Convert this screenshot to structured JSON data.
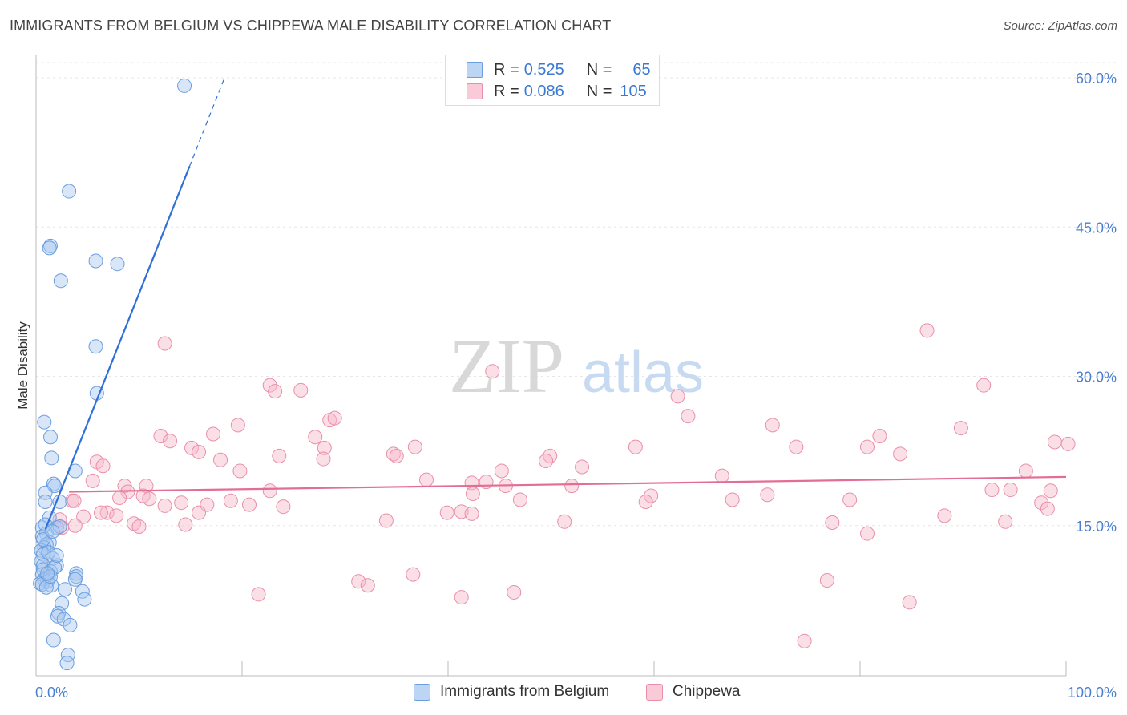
{
  "title": "IMMIGRANTS FROM BELGIUM VS CHIPPEWA MALE DISABILITY CORRELATION CHART",
  "source": "Source: ZipAtlas.com",
  "watermark": {
    "zip": "ZIP",
    "atlas": "atlas"
  },
  "colors": {
    "blue_fill": "#a9c8f0",
    "blue_stroke": "#6a9ee0",
    "blue_line": "#2f6fd6",
    "pink_fill": "#f6b7ca",
    "pink_stroke": "#e98fab",
    "pink_line": "#e36d95",
    "axis_text": "#4a7fd0",
    "grid": "#e6e6e6"
  },
  "legend_top": {
    "rows": [
      {
        "r_label": "R =",
        "r_value": "0.525",
        "n_label": "N =",
        "n_value": "65"
      },
      {
        "r_label": "R =",
        "r_value": "0.086",
        "n_label": "N =",
        "n_value": "105"
      }
    ]
  },
  "legend_bottom": {
    "series1": "Immigrants from Belgium",
    "series2": "Chippewa"
  },
  "chart_data": {
    "type": "scatter",
    "title": "IMMIGRANTS FROM BELGIUM VS CHIPPEWA MALE DISABILITY CORRELATION CHART",
    "xlabel": "",
    "ylabel": "Male Disability",
    "xlim": [
      0,
      100
    ],
    "ylim": [
      0,
      61.5
    ],
    "x_tick_labels": [
      "0.0%",
      "100.0%"
    ],
    "y_ticks": [
      15,
      30,
      45,
      60
    ],
    "y_tick_labels": [
      "15.0%",
      "30.0%",
      "45.0%",
      "60.0%"
    ],
    "grid": "horizontal dashed",
    "legend": "top-center and bottom",
    "series": [
      {
        "name": "Immigrants from Belgium",
        "color": "#a9c8f0",
        "r": 0.525,
        "n": 65,
        "trend": {
          "x0": 0.9,
          "y0": 14.6,
          "x1": 14.9,
          "y1": 51.1,
          "dashed_to": [
            18.3,
            60.0
          ]
        },
        "points": [
          [
            14.4,
            59.2
          ],
          [
            3.2,
            48.6
          ],
          [
            1.4,
            43.1
          ],
          [
            1.3,
            42.9
          ],
          [
            5.8,
            41.6
          ],
          [
            7.9,
            41.3
          ],
          [
            2.4,
            39.6
          ],
          [
            5.8,
            33.0
          ],
          [
            5.9,
            28.3
          ],
          [
            0.8,
            25.4
          ],
          [
            1.4,
            23.9
          ],
          [
            1.5,
            21.8
          ],
          [
            3.8,
            20.5
          ],
          [
            1.7,
            19.2
          ],
          [
            1.8,
            19.0
          ],
          [
            0.9,
            18.3
          ],
          [
            0.9,
            17.4
          ],
          [
            2.3,
            17.4
          ],
          [
            1.3,
            15.8
          ],
          [
            2.0,
            14.8
          ],
          [
            0.6,
            14.8
          ],
          [
            1.0,
            14.2
          ],
          [
            0.6,
            13.9
          ],
          [
            1.3,
            13.3
          ],
          [
            1.0,
            13.1
          ],
          [
            0.8,
            12.8
          ],
          [
            0.5,
            12.5
          ],
          [
            0.7,
            12.1
          ],
          [
            1.6,
            11.7
          ],
          [
            0.5,
            11.4
          ],
          [
            0.7,
            11.0
          ],
          [
            2.0,
            11.0
          ],
          [
            0.7,
            10.6
          ],
          [
            1.4,
            10.4
          ],
          [
            0.6,
            10.1
          ],
          [
            1.2,
            9.8
          ],
          [
            0.8,
            9.6
          ],
          [
            1.1,
            9.4
          ],
          [
            0.4,
            9.2
          ],
          [
            0.6,
            9.1
          ],
          [
            3.9,
            10.2
          ],
          [
            3.9,
            9.9
          ],
          [
            3.8,
            9.6
          ],
          [
            1.5,
            9.0
          ],
          [
            1.0,
            8.8
          ],
          [
            2.8,
            8.6
          ],
          [
            4.5,
            8.4
          ],
          [
            4.7,
            7.6
          ],
          [
            2.5,
            7.2
          ],
          [
            2.2,
            6.2
          ],
          [
            2.1,
            5.9
          ],
          [
            2.7,
            5.6
          ],
          [
            3.3,
            5.0
          ],
          [
            1.7,
            3.5
          ],
          [
            3.1,
            2.0
          ],
          [
            3.0,
            1.2
          ],
          [
            1.8,
            10.8
          ],
          [
            1.2,
            12.3
          ],
          [
            0.7,
            13.6
          ],
          [
            2.3,
            14.9
          ],
          [
            0.9,
            15.1
          ],
          [
            1.4,
            9.9
          ],
          [
            2.0,
            12.0
          ],
          [
            1.1,
            10.2
          ],
          [
            1.6,
            14.4
          ]
        ]
      },
      {
        "name": "Chippewa",
        "color": "#f6b7ca",
        "r": 0.086,
        "n": 105,
        "trend": {
          "x0": 3.2,
          "y0": 18.4,
          "x1": 100.0,
          "y1": 19.9
        },
        "points": [
          [
            86.5,
            34.6
          ],
          [
            12.5,
            33.3
          ],
          [
            44.3,
            30.5
          ],
          [
            22.7,
            29.1
          ],
          [
            23.2,
            28.5
          ],
          [
            25.7,
            28.6
          ],
          [
            62.3,
            28.0
          ],
          [
            92.0,
            29.1
          ],
          [
            63.3,
            26.0
          ],
          [
            28.5,
            25.6
          ],
          [
            19.6,
            25.1
          ],
          [
            71.5,
            25.1
          ],
          [
            89.8,
            24.8
          ],
          [
            12.1,
            24.0
          ],
          [
            17.2,
            24.2
          ],
          [
            27.1,
            23.9
          ],
          [
            81.9,
            24.0
          ],
          [
            13.0,
            23.5
          ],
          [
            28.0,
            22.8
          ],
          [
            15.1,
            22.8
          ],
          [
            15.8,
            22.4
          ],
          [
            36.8,
            22.9
          ],
          [
            58.2,
            22.9
          ],
          [
            73.8,
            22.9
          ],
          [
            80.7,
            22.9
          ],
          [
            98.9,
            23.4
          ],
          [
            100.2,
            23.2
          ],
          [
            34.7,
            22.2
          ],
          [
            35.0,
            22.0
          ],
          [
            23.6,
            22.0
          ],
          [
            83.9,
            22.2
          ],
          [
            49.9,
            22.0
          ],
          [
            17.9,
            21.6
          ],
          [
            27.9,
            21.7
          ],
          [
            49.5,
            21.5
          ],
          [
            5.9,
            21.4
          ],
          [
            53.0,
            20.9
          ],
          [
            6.5,
            21.0
          ],
          [
            19.8,
            20.5
          ],
          [
            45.2,
            20.5
          ],
          [
            96.1,
            20.5
          ],
          [
            66.6,
            20.0
          ],
          [
            37.9,
            19.6
          ],
          [
            43.7,
            19.4
          ],
          [
            42.3,
            19.3
          ],
          [
            52.0,
            19.0
          ],
          [
            45.6,
            19.0
          ],
          [
            8.6,
            19.0
          ],
          [
            10.7,
            19.0
          ],
          [
            5.5,
            19.5
          ],
          [
            22.7,
            18.5
          ],
          [
            8.9,
            18.4
          ],
          [
            92.8,
            18.6
          ],
          [
            94.6,
            18.6
          ],
          [
            98.5,
            18.5
          ],
          [
            71.0,
            18.1
          ],
          [
            59.7,
            18.0
          ],
          [
            10.4,
            18.0
          ],
          [
            42.4,
            18.2
          ],
          [
            8.1,
            17.8
          ],
          [
            67.6,
            17.6
          ],
          [
            3.5,
            17.5
          ],
          [
            3.7,
            17.5
          ],
          [
            11.0,
            17.7
          ],
          [
            18.9,
            17.5
          ],
          [
            47.0,
            17.6
          ],
          [
            59.2,
            17.4
          ],
          [
            79.0,
            17.6
          ],
          [
            97.6,
            17.3
          ],
          [
            12.5,
            17.0
          ],
          [
            14.1,
            17.3
          ],
          [
            16.6,
            17.1
          ],
          [
            20.7,
            17.1
          ],
          [
            24.0,
            16.9
          ],
          [
            98.2,
            16.7
          ],
          [
            6.9,
            16.3
          ],
          [
            15.8,
            16.3
          ],
          [
            7.8,
            16.0
          ],
          [
            39.9,
            16.3
          ],
          [
            41.3,
            16.4
          ],
          [
            42.3,
            16.2
          ],
          [
            88.2,
            16.0
          ],
          [
            4.6,
            15.9
          ],
          [
            2.3,
            15.6
          ],
          [
            3.8,
            15.0
          ],
          [
            9.5,
            15.2
          ],
          [
            10.0,
            14.9
          ],
          [
            14.5,
            15.1
          ],
          [
            34.0,
            15.5
          ],
          [
            51.3,
            15.4
          ],
          [
            77.3,
            15.3
          ],
          [
            94.1,
            15.4
          ],
          [
            2.5,
            14.8
          ],
          [
            80.7,
            14.2
          ],
          [
            36.6,
            10.1
          ],
          [
            31.3,
            9.4
          ],
          [
            32.2,
            9.0
          ],
          [
            76.8,
            9.5
          ],
          [
            21.6,
            8.1
          ],
          [
            41.3,
            7.8
          ],
          [
            46.4,
            8.3
          ],
          [
            84.8,
            7.3
          ],
          [
            74.6,
            3.4
          ],
          [
            6.3,
            16.3
          ],
          [
            29.0,
            25.8
          ]
        ]
      }
    ]
  }
}
